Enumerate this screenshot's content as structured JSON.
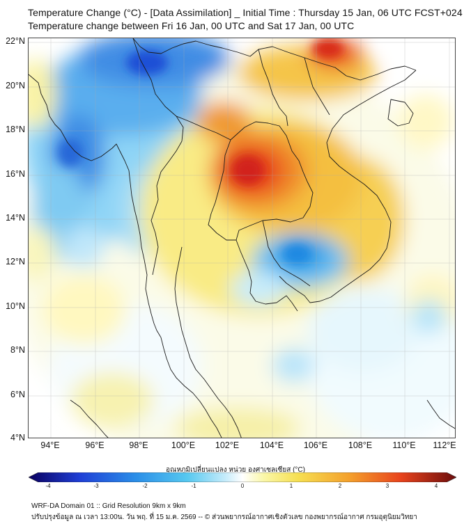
{
  "header": {
    "title_line1": "Temperature Change (°C) - [Data Assimilation] _ Initial Time : Thursday 15 Jan, 06 UTC FCST+024",
    "title_line2": "Temperature change between Fri 16 Jan, 00 UTC and Sat 17 Jan, 00 UTC"
  },
  "map": {
    "lat_labels": [
      "22°N",
      "20°N",
      "18°N",
      "16°N",
      "14°N",
      "12°N",
      "10°N",
      "8°N",
      "6°N",
      "4°N"
    ],
    "lon_labels": [
      "94°E",
      "96°E",
      "98°E",
      "100°E",
      "102°E",
      "104°E",
      "106°E",
      "108°E",
      "110°E",
      "112°E"
    ],
    "field_features": [
      {
        "label": "heat-core-northeast-thailand",
        "value": 3.4
      },
      {
        "label": "warm-north-vietnam",
        "value": 2.6
      },
      {
        "label": "cold-northern-myanmar",
        "value": -2.6
      },
      {
        "label": "cold-western-myanmar",
        "value": -2.2
      },
      {
        "label": "cold-southern-vietnam",
        "value": -1.6
      }
    ]
  },
  "colorbar": {
    "title": "อุณหภูมิเปลี่ยนแปลง หน่วย องศาเซลเซียส (°C)",
    "range": [
      -4,
      4
    ],
    "ticks": [
      "-4",
      "-3",
      "-2",
      "-1",
      "0",
      "1",
      "2",
      "3",
      "4"
    ],
    "colors": {
      "min": "#0a0060",
      "deep_blue": "#1f3fd6",
      "blue": "#2a8ee8",
      "cyan": "#56c8f0",
      "pale_cyan": "#c6ecfb",
      "white": "#ffffff",
      "pale_yellow": "#faf7a8",
      "yellow": "#f6df52",
      "orange": "#f4a02c",
      "red": "#e8431c",
      "max": "#6b0c0c"
    }
  },
  "footer": {
    "line1": "WRF-DA Domain 01 :: Grid Resolution 9km x 9km",
    "line2": "ปรับปรุงข้อมูล ณ เวลา 13:00น. วัน พฤ. ที่ 15 ม.ค. 2569 -- © ส่วนพยากรณ์อากาศเชิงตัวเลข กองพยากรณ์อากาศ กรมอุตุนิยมวิทยา"
  }
}
